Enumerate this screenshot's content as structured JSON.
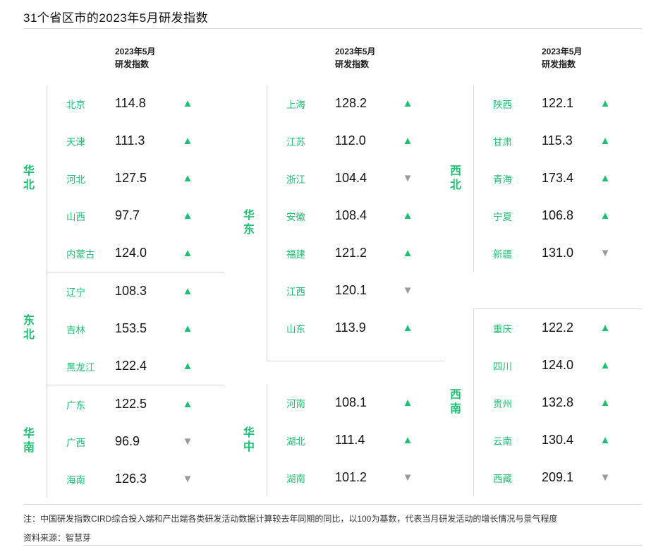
{
  "title": "31个省区市的2023年5月研发指数",
  "column_header": {
    "line1": "2023年5月",
    "line2": "研发指数"
  },
  "chart_data": {
    "type": "table",
    "title": "31个省区市的2023年5月研发指数",
    "value_label": "2023年5月研发指数",
    "baseline": 100,
    "columns": [
      {
        "groups": [
          {
            "label": "华北",
            "rows": [
              {
                "province": "北京",
                "value": "114.8",
                "trend": "up"
              },
              {
                "province": "天津",
                "value": "111.3",
                "trend": "up"
              },
              {
                "province": "河北",
                "value": "127.5",
                "trend": "up"
              },
              {
                "province": "山西",
                "value": "97.7",
                "trend": "up"
              },
              {
                "province": "内蒙古",
                "value": "124.0",
                "trend": "up"
              }
            ]
          },
          {
            "label": "东北",
            "rows": [
              {
                "province": "辽宁",
                "value": "108.3",
                "trend": "up"
              },
              {
                "province": "吉林",
                "value": "153.5",
                "trend": "up"
              },
              {
                "province": "黑龙江",
                "value": "122.4",
                "trend": "up"
              }
            ]
          },
          {
            "label": "华南",
            "rows": [
              {
                "province": "广东",
                "value": "122.5",
                "trend": "up"
              },
              {
                "province": "广西",
                "value": "96.9",
                "trend": "down"
              },
              {
                "province": "海南",
                "value": "126.3",
                "trend": "down"
              }
            ]
          }
        ]
      },
      {
        "groups": [
          {
            "label": "华东",
            "rows": [
              {
                "province": "上海",
                "value": "128.2",
                "trend": "up"
              },
              {
                "province": "江苏",
                "value": "112.0",
                "trend": "up"
              },
              {
                "province": "浙江",
                "value": "104.4",
                "trend": "down"
              },
              {
                "province": "安徽",
                "value": "108.4",
                "trend": "up"
              },
              {
                "province": "福建",
                "value": "121.2",
                "trend": "up"
              },
              {
                "province": "江西",
                "value": "120.1",
                "trend": "down"
              },
              {
                "province": "山东",
                "value": "113.9",
                "trend": "up"
              }
            ]
          },
          {
            "label": "华中",
            "rows": [
              {
                "province": "河南",
                "value": "108.1",
                "trend": "up"
              },
              {
                "province": "湖北",
                "value": "111.4",
                "trend": "up"
              },
              {
                "province": "湖南",
                "value": "101.2",
                "trend": "down"
              }
            ]
          }
        ]
      },
      {
        "groups": [
          {
            "label": "西北",
            "rows": [
              {
                "province": "陕西",
                "value": "122.1",
                "trend": "up"
              },
              {
                "province": "甘肃",
                "value": "115.3",
                "trend": "up"
              },
              {
                "province": "青海",
                "value": "173.4",
                "trend": "up"
              },
              {
                "province": "宁夏",
                "value": "106.8",
                "trend": "up"
              },
              {
                "province": "新疆",
                "value": "131.0",
                "trend": "down"
              }
            ]
          },
          {
            "label": "西南",
            "rows": [
              {
                "province": "重庆",
                "value": "122.2",
                "trend": "up"
              },
              {
                "province": "四川",
                "value": "124.0",
                "trend": "up"
              },
              {
                "province": "贵州",
                "value": "132.8",
                "trend": "up"
              },
              {
                "province": "云南",
                "value": "130.4",
                "trend": "up"
              },
              {
                "province": "西藏",
                "value": "209.1",
                "trend": "down"
              }
            ]
          }
        ]
      }
    ]
  },
  "footnote": "注：中国研发指数CIRD综合投入端和产出端各类研发活动数据计算较去年同期的同比，以100为基数，代表当月研发活动的增长情况与景气程度",
  "source": "资料来源：智慧芽",
  "colors": {
    "green": "#1dbf73",
    "down_gray": "#9b9b9b"
  }
}
